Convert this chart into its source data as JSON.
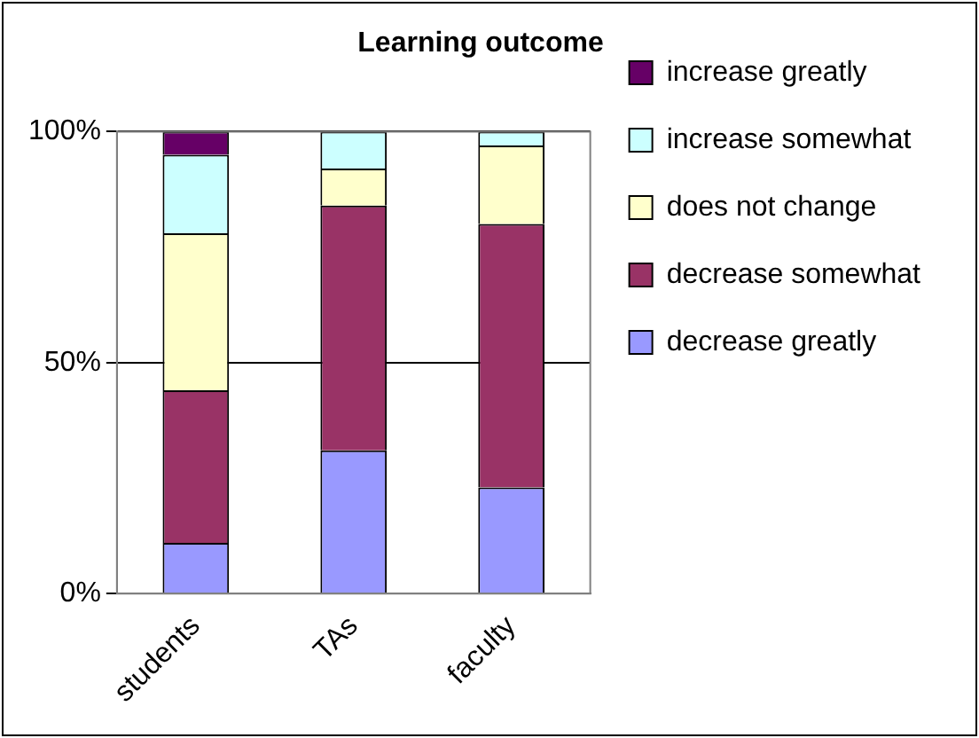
{
  "chart_data": {
    "type": "bar",
    "stacked": true,
    "title": "Learning outcome",
    "categories": [
      "students",
      "TAs",
      "faculty"
    ],
    "series": [
      {
        "name": "decrease greatly",
        "color": "#9999ff",
        "values": [
          11,
          31,
          23
        ]
      },
      {
        "name": "decrease somewhat",
        "color": "#993366",
        "values": [
          33,
          53,
          57
        ]
      },
      {
        "name": "does not change",
        "color": "#ffffcc",
        "values": [
          34,
          8,
          17
        ]
      },
      {
        "name": "increase somewhat",
        "color": "#ccffff",
        "values": [
          17,
          8,
          3
        ]
      },
      {
        "name": "increase greatly",
        "color": "#660066",
        "values": [
          5,
          0,
          0
        ]
      }
    ],
    "ylim": [
      0,
      100
    ],
    "yticks": [
      {
        "value": 0,
        "label": "0%"
      },
      {
        "value": 50,
        "label": "50%"
      },
      {
        "value": 100,
        "label": "100%"
      }
    ],
    "grid": "y",
    "legend": "right"
  }
}
